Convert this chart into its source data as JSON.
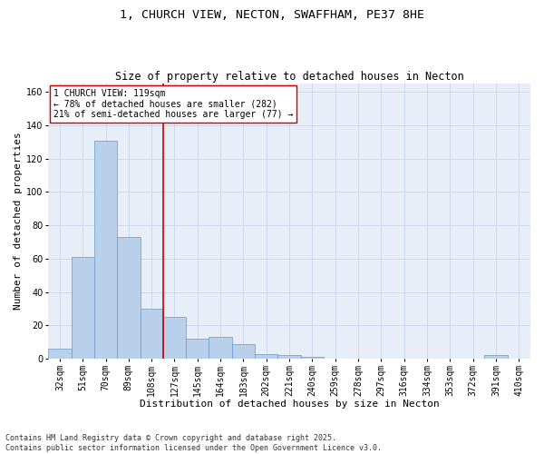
{
  "title_line1": "1, CHURCH VIEW, NECTON, SWAFFHAM, PE37 8HE",
  "title_line2": "Size of property relative to detached houses in Necton",
  "xlabel": "Distribution of detached houses by size in Necton",
  "ylabel": "Number of detached properties",
  "footnote": "Contains HM Land Registry data © Crown copyright and database right 2025.\nContains public sector information licensed under the Open Government Licence v3.0.",
  "categories": [
    "32sqm",
    "51sqm",
    "70sqm",
    "89sqm",
    "108sqm",
    "127sqm",
    "145sqm",
    "164sqm",
    "183sqm",
    "202sqm",
    "221sqm",
    "240sqm",
    "259sqm",
    "278sqm",
    "297sqm",
    "316sqm",
    "334sqm",
    "353sqm",
    "372sqm",
    "391sqm",
    "410sqm"
  ],
  "values": [
    6,
    61,
    131,
    73,
    30,
    25,
    12,
    13,
    9,
    3,
    2,
    1,
    0,
    0,
    0,
    0,
    0,
    0,
    0,
    2,
    0
  ],
  "bar_color": "#b8d0ea",
  "bar_edge_color": "#6699cc",
  "vline_color": "#cc0000",
  "annotation_text": "1 CHURCH VIEW: 119sqm\n← 78% of detached houses are smaller (282)\n21% of semi-detached houses are larger (77) →",
  "annotation_box_color": "#ffffff",
  "annotation_box_edge_color": "#cc0000",
  "ylim": [
    0,
    165
  ],
  "yticks": [
    0,
    20,
    40,
    60,
    80,
    100,
    120,
    140,
    160
  ],
  "grid_color": "#c8d4e8",
  "background_color": "#e8eef8",
  "title_fontsize": 9.5,
  "subtitle_fontsize": 8.5,
  "axis_label_fontsize": 8,
  "tick_fontsize": 7,
  "footnote_fontsize": 6,
  "annotation_fontsize": 7
}
